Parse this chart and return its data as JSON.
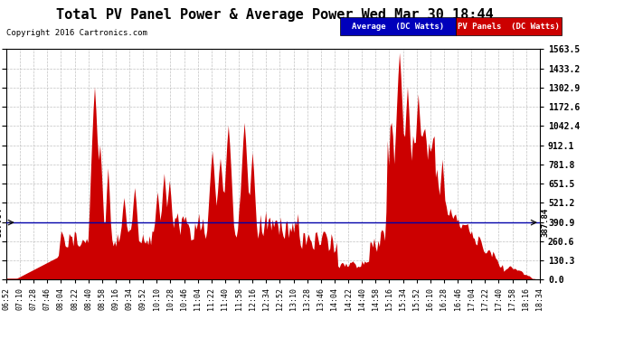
{
  "title": "Total PV Panel Power & Average Power Wed Mar 30 18:44",
  "copyright": "Copyright 2016 Cartronics.com",
  "legend_labels": [
    "Average  (DC Watts)",
    "PV Panels  (DC Watts)"
  ],
  "legend_colors": [
    "#0000cc",
    "#cc0000"
  ],
  "average_value": 387.84,
  "y_tick_labels": [
    "0.0",
    "130.3",
    "260.6",
    "390.9",
    "521.2",
    "651.5",
    "781.8",
    "912.1",
    "1042.4",
    "1172.6",
    "1302.9",
    "1433.2",
    "1563.5"
  ],
  "y_tick_values": [
    0.0,
    130.3,
    260.6,
    390.9,
    521.2,
    651.5,
    781.8,
    912.1,
    1042.4,
    1172.6,
    1302.9,
    1433.2,
    1563.5
  ],
  "x_tick_labels": [
    "06:52",
    "07:10",
    "07:28",
    "07:46",
    "08:04",
    "08:22",
    "08:40",
    "08:58",
    "09:16",
    "09:34",
    "09:52",
    "10:10",
    "10:28",
    "10:46",
    "11:04",
    "11:22",
    "11:40",
    "11:58",
    "12:16",
    "12:34",
    "12:52",
    "13:10",
    "13:28",
    "13:46",
    "14:04",
    "14:22",
    "14:40",
    "14:58",
    "15:16",
    "15:34",
    "15:52",
    "16:10",
    "16:28",
    "16:46",
    "17:04",
    "17:22",
    "17:40",
    "17:58",
    "18:16",
    "18:34"
  ],
  "area_color": "#cc0000",
  "line_color": "#0000aa",
  "bg_color": "#ffffff",
  "grid_color": "#bbbbbb",
  "title_fontsize": 11,
  "copyright_fontsize": 6.5,
  "ymax": 1563.5,
  "ymin": 0.0,
  "avg_label": "387.84"
}
